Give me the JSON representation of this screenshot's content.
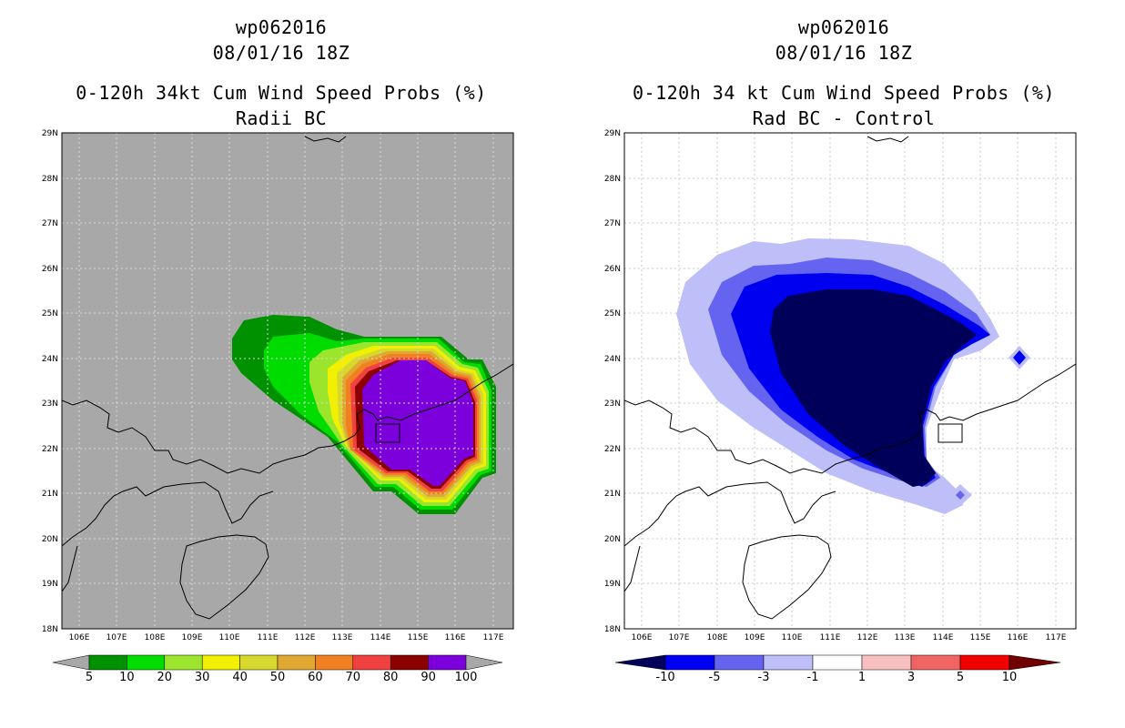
{
  "left": {
    "title1": "wp062016",
    "title2": "08/01/16 18Z",
    "title3": "0-120h 34kt Cum Wind Speed Probs (%)",
    "title4": "Radii BC",
    "background_color": "#a8a8a8",
    "colorbar": {
      "labels": [
        "5",
        "10",
        "20",
        "30",
        "40",
        "50",
        "60",
        "70",
        "80",
        "90",
        "100"
      ],
      "colors": [
        "#009100",
        "#00dc00",
        "#9be62d",
        "#f0f000",
        "#d7d72d",
        "#e0a830",
        "#f08020",
        "#f04040",
        "#8c0000",
        "#7b00dc"
      ]
    }
  },
  "right": {
    "title1": "wp062016",
    "title2": "08/01/16 18Z",
    "title3": "0-120h 34 kt Cum Wind Speed Probs (%)",
    "title4": "Rad BC - Control",
    "background_color": "#ffffff",
    "colorbar": {
      "labels": [
        "-10",
        "-5",
        "-3",
        "-1",
        "1",
        "3",
        "5",
        "10"
      ],
      "colors": [
        "#00005a",
        "#0000f0",
        "#6464f0",
        "#bebef8",
        "#ffffff",
        "#f8c0c0",
        "#f06464",
        "#f00000",
        "#700000"
      ]
    }
  },
  "axes": {
    "lat_labels": [
      "29N",
      "28N",
      "27N",
      "26N",
      "25N",
      "24N",
      "23N",
      "22N",
      "21N",
      "20N",
      "19N",
      "18N"
    ],
    "lon_labels": [
      "106E",
      "107E",
      "108E",
      "109E",
      "110E",
      "111E",
      "112E",
      "113E",
      "114E",
      "115E",
      "116E",
      "117E"
    ]
  }
}
